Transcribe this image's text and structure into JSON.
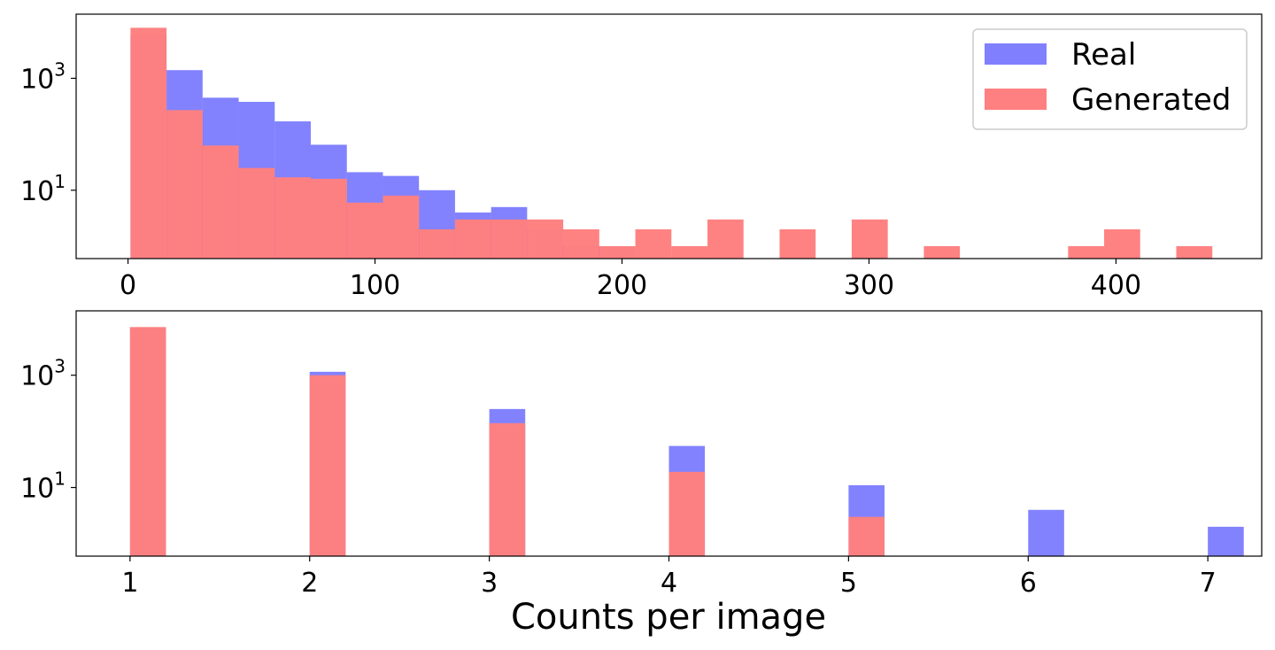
{
  "chart_data": [
    {
      "type": "bar",
      "title": "",
      "xlabel": "",
      "ylabel": "",
      "yscale": "log",
      "grid": false,
      "bin_width": 14.6,
      "x_start": 1,
      "xlim": [
        -21,
        459
      ],
      "ylim": [
        0.6,
        14000
      ],
      "x_ticks": [
        {
          "value": 0,
          "label": "0"
        },
        {
          "value": 100,
          "label": "100"
        },
        {
          "value": 200,
          "label": "200"
        },
        {
          "value": 300,
          "label": "300"
        },
        {
          "value": 400,
          "label": "400"
        }
      ],
      "y_ticks": [
        {
          "value": 1000,
          "base": "10",
          "exp": "3"
        },
        {
          "value": 10,
          "base": "10",
          "exp": "1"
        }
      ],
      "series": [
        {
          "name": "Real",
          "color": "#8080ff",
          "values": [
            6000,
            1400,
            450,
            380,
            170,
            65,
            21,
            18,
            10,
            4,
            5,
            2,
            1,
            1,
            0,
            0,
            0,
            0,
            0,
            0,
            0,
            0,
            0,
            0,
            0,
            0,
            0,
            0,
            0,
            0
          ]
        },
        {
          "name": "Generated",
          "color": "#ff8080",
          "values": [
            8000,
            270,
            63,
            25,
            17,
            16,
            6,
            8,
            2,
            3,
            3,
            3,
            2,
            1,
            2,
            1,
            3,
            0,
            2,
            0,
            3,
            0,
            1,
            0,
            0,
            0,
            1,
            2,
            0,
            1
          ]
        }
      ],
      "legend": {
        "position": "top-right",
        "entries": [
          "Real",
          "Generated"
        ]
      }
    },
    {
      "type": "bar",
      "title": "",
      "xlabel": "Counts per image",
      "ylabel": "",
      "yscale": "log",
      "grid": false,
      "bin_width": 0.2,
      "x_start": 1,
      "xlim": [
        0.7,
        7.3
      ],
      "ylim": [
        0.6,
        14000
      ],
      "x_ticks": [
        {
          "value": 1,
          "label": "1"
        },
        {
          "value": 2,
          "label": "2"
        },
        {
          "value": 3,
          "label": "3"
        },
        {
          "value": 4,
          "label": "4"
        },
        {
          "value": 5,
          "label": "5"
        },
        {
          "value": 6,
          "label": "6"
        },
        {
          "value": 7,
          "label": "7"
        }
      ],
      "y_ticks": [
        {
          "value": 1000,
          "base": "10",
          "exp": "3"
        },
        {
          "value": 10,
          "base": "10",
          "exp": "1"
        }
      ],
      "series": [
        {
          "name": "Real",
          "color": "#8080ff",
          "x": [
            1,
            2,
            3,
            4,
            5,
            6,
            7
          ],
          "values": [
            7000,
            1150,
            250,
            55,
            11,
            4,
            2
          ]
        },
        {
          "name": "Generated",
          "color": "#ff8080",
          "x": [
            1,
            2,
            3,
            4,
            5,
            6,
            7
          ],
          "values": [
            7200,
            1000,
            140,
            19,
            3,
            0,
            0
          ]
        }
      ]
    }
  ]
}
